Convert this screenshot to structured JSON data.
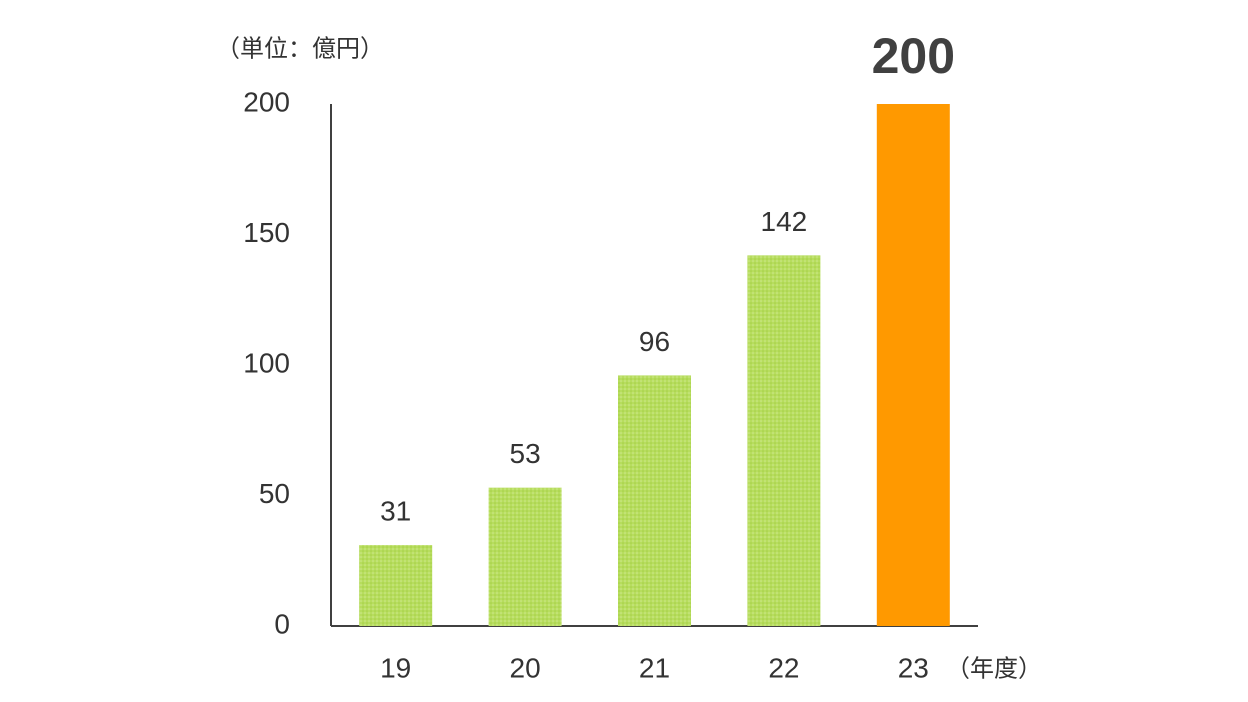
{
  "chart_data": {
    "type": "bar",
    "y_label": "（単位：億円）",
    "x_label": "（年度）",
    "categories": [
      "19",
      "20",
      "21",
      "22",
      "23"
    ],
    "values": [
      31,
      53,
      96,
      142,
      200
    ],
    "colors": [
      "#b7dd5e",
      "#b7dd5e",
      "#b7dd5e",
      "#b7dd5e",
      "#ff9900"
    ],
    "ylim": [
      0,
      200
    ],
    "yticks": [
      0,
      50,
      100,
      150,
      200
    ],
    "grid": false
  }
}
